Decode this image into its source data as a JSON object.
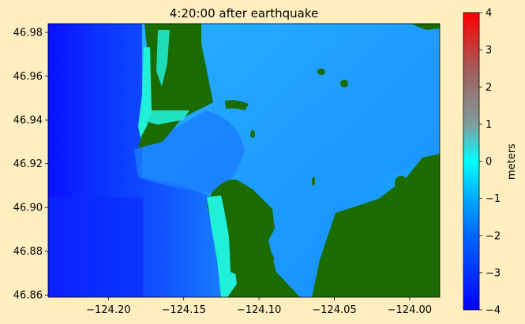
{
  "chart_data": {
    "type": "heatmap",
    "title": "4:20:00 after earthquake",
    "xlabel": "",
    "ylabel": "",
    "xlim": [
      -124.24,
      -123.98
    ],
    "ylim": [
      46.859,
      46.984
    ],
    "x_ticks": [
      -124.2,
      -124.15,
      -124.1,
      -124.05,
      -124.0
    ],
    "x_tick_labels": [
      "−124.20",
      "−124.15",
      "−124.10",
      "−124.05",
      "−124.00"
    ],
    "y_ticks": [
      46.86,
      46.88,
      46.9,
      46.92,
      46.94,
      46.96,
      46.98
    ],
    "y_tick_labels": [
      "46.86",
      "46.88",
      "46.90",
      "46.92",
      "46.94",
      "46.96",
      "46.98"
    ],
    "colorbar": {
      "label": "meters",
      "range": [
        -4,
        4
      ],
      "ticks": [
        -4,
        -3,
        -2,
        -1,
        0,
        1,
        2,
        3,
        4
      ],
      "tick_labels": [
        "−4",
        "−3",
        "−2",
        "−1",
        "0",
        "1",
        "2",
        "3",
        "4"
      ],
      "colors": [
        "#0000ff",
        "#0066ff",
        "#00aaff",
        "#00ffff",
        "#7f9f9f",
        "#a06060",
        "#ff0000"
      ]
    },
    "colors": {
      "land": "#1a6b00",
      "deep_water": "#0a2fff",
      "shallow_water": "#1a9fff",
      "wet_sand": "#20f0d8",
      "background": "#ffefc0"
    },
    "grid": false,
    "legend": "none"
  }
}
